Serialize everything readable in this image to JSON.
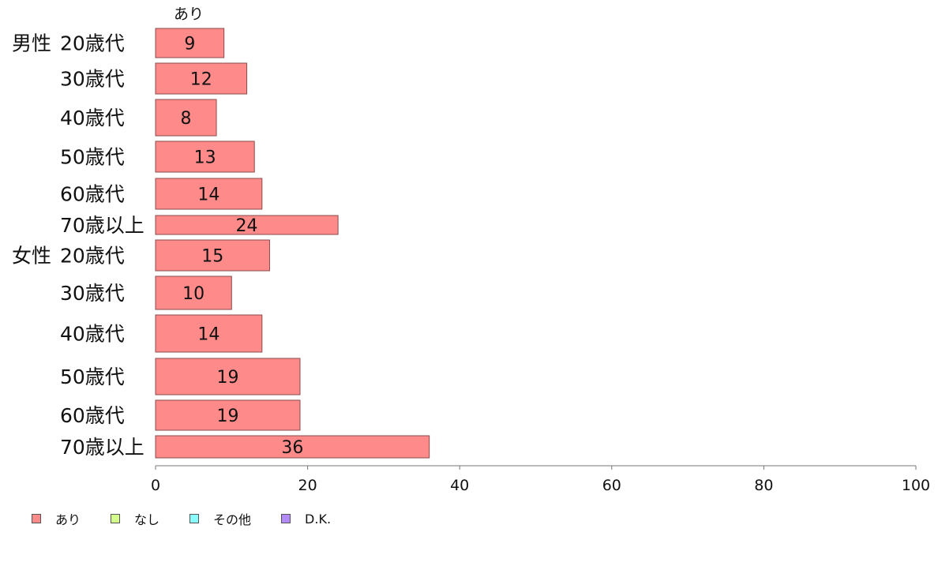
{
  "chart_data": {
    "type": "bar",
    "orientation": "horizontal",
    "series_top_label": "あり",
    "groups": [
      {
        "label": "男性",
        "rows": [
          0,
          5
        ]
      },
      {
        "label": "女性",
        "rows": [
          6,
          11
        ]
      }
    ],
    "categories": [
      "20歳代",
      "30歳代",
      "40歳代",
      "50歳代",
      "60歳代",
      "70歳以上",
      "20歳代",
      "30歳代",
      "40歳代",
      "50歳代",
      "60歳代",
      "70歳以上"
    ],
    "series": [
      {
        "name": "あり",
        "color": "#ff8a8a",
        "values": [
          9,
          12,
          8,
          13,
          14,
          24,
          15,
          10,
          14,
          19,
          19,
          36
        ]
      }
    ],
    "xlim": [
      0,
      100
    ],
    "xticks": [
      "0",
      "20",
      "40",
      "60",
      "80",
      "100"
    ],
    "legend": {
      "position": "bottom-left",
      "items": [
        {
          "label": "あり",
          "color": "#ff8a8a"
        },
        {
          "label": "なし",
          "color": "#d4ff8a"
        },
        {
          "label": "その他",
          "color": "#8affff"
        },
        {
          "label": "D.K.",
          "color": "#b48aff"
        }
      ]
    },
    "grid": false
  }
}
